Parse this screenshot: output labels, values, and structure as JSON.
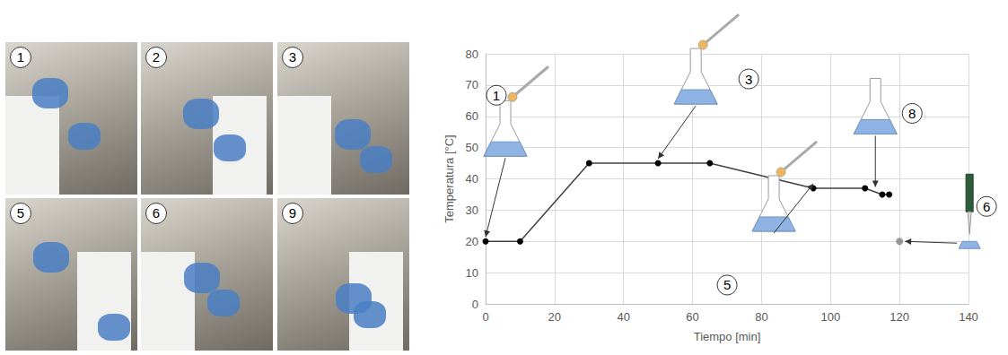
{
  "photos": {
    "labels": [
      "1",
      "2",
      "3",
      "5",
      "6",
      "9"
    ]
  },
  "chart_data": {
    "type": "line",
    "x_label": "Tiempo [min]",
    "y_label": "Temperatura [°C]",
    "series": [
      {
        "type": "line",
        "color": "#404040",
        "marker": "circle",
        "x": [
          0,
          10,
          30,
          50,
          65,
          95,
          110,
          115,
          117
        ],
        "values": [
          20,
          20,
          45,
          45,
          45,
          37,
          37,
          35,
          35
        ]
      },
      {
        "type": "scatter",
        "color": "#808080",
        "marker": "circle",
        "x": [
          120
        ],
        "values": [
          20
        ]
      }
    ],
    "annotations": [
      {
        "text": "1",
        "x": 0,
        "y": 20
      },
      {
        "text": "3",
        "x": 50,
        "y": 45
      },
      {
        "text": "5",
        "x": 95,
        "y": 37
      },
      {
        "text": "8",
        "x": 113,
        "y": 36
      },
      {
        "text": "6",
        "x": 120,
        "y": 20
      }
    ],
    "xlim": [
      0,
      140
    ],
    "xticks": [
      0,
      20,
      40,
      60,
      80,
      100,
      120,
      140
    ],
    "ylim": [
      0,
      80
    ],
    "yticks": [
      0,
      10,
      20,
      30,
      40,
      50,
      60,
      70,
      80
    ],
    "grid": true
  }
}
